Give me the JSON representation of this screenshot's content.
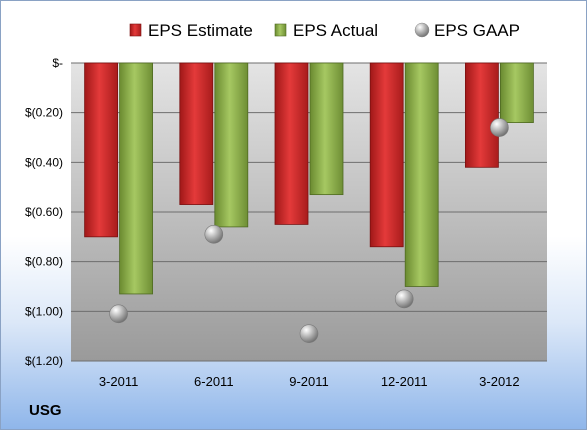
{
  "company": "USG",
  "chart_data": {
    "type": "bar",
    "categories": [
      "3-2011",
      "6-2011",
      "9-2011",
      "12-2011",
      "3-2012"
    ],
    "series": [
      {
        "name": "EPS Estimate",
        "kind": "bar",
        "color": "#cc2222",
        "values": [
          -0.7,
          -0.57,
          -0.65,
          -0.74,
          -0.42
        ]
      },
      {
        "name": "EPS Actual",
        "kind": "bar",
        "color": "#8aac4a",
        "values": [
          -0.93,
          -0.66,
          -0.53,
          -0.9,
          -0.24
        ]
      },
      {
        "name": "EPS GAAP",
        "kind": "scatter",
        "color": "#b8b8b8",
        "values": [
          -1.01,
          -0.69,
          -1.09,
          -0.95,
          -0.26
        ]
      }
    ],
    "y_ticks": [
      0,
      -0.2,
      -0.4,
      -0.6,
      -0.8,
      -1.0,
      -1.2
    ],
    "y_tick_labels": [
      "$-",
      "$(0.20)",
      "$(0.40)",
      "$(0.60)",
      "$(0.80)",
      "$(1.00)",
      "$(1.20)"
    ],
    "ylim": [
      -1.2,
      0
    ],
    "grid": true,
    "legend_position": "top",
    "title": "",
    "xlabel": "",
    "ylabel": ""
  }
}
